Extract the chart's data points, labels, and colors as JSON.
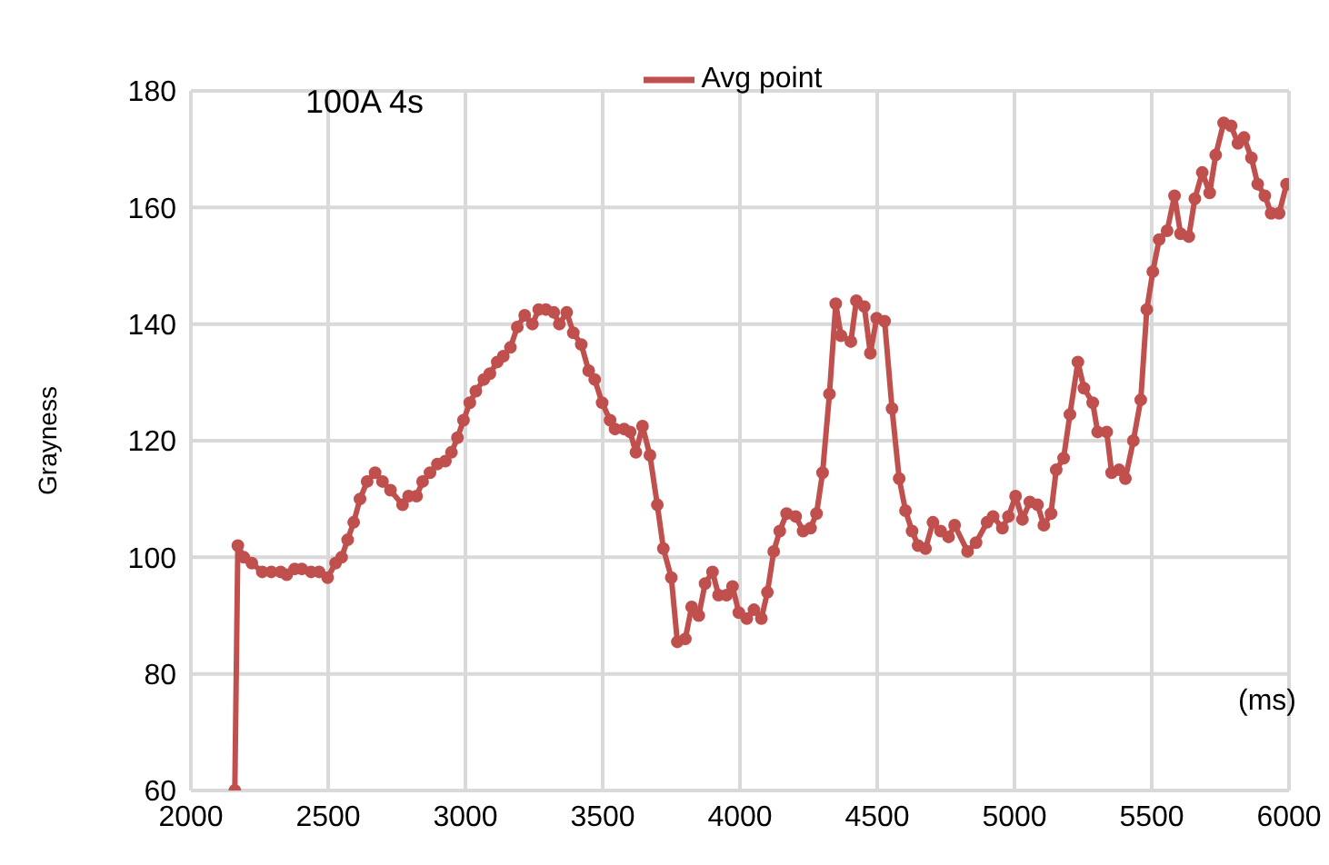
{
  "chart_data": {
    "type": "line",
    "xlabel": "(ms)",
    "ylabel": "Grayness",
    "annotations": [
      "100A 4s"
    ],
    "xlim": [
      2000,
      6000
    ],
    "xticks": [
      2000,
      2500,
      3000,
      3500,
      4000,
      4500,
      5000,
      5500,
      6000
    ],
    "ylim": [
      60,
      180
    ],
    "yticks": [
      60,
      80,
      100,
      120,
      140,
      160,
      180
    ],
    "grid": true,
    "legend": "top",
    "marker": "circle",
    "line_style": "solid",
    "series": [
      {
        "name": "Avg point",
        "color": "#c0504d",
        "x": [
          2160,
          2171,
          2193,
          2222,
          2260,
          2293,
          2327,
          2349,
          2378,
          2404,
          2438,
          2467,
          2498,
          2527,
          2549,
          2571,
          2593,
          2616,
          2642,
          2671,
          2698,
          2727,
          2771,
          2793,
          2822,
          2844,
          2871,
          2898,
          2927,
          2949,
          2971,
          2993,
          3016,
          3038,
          3067,
          3089,
          3116,
          3138,
          3164,
          3189,
          3216,
          3244,
          3267,
          3293,
          3322,
          3342,
          3369,
          3393,
          3422,
          3449,
          3471,
          3498,
          3527,
          3545,
          3578,
          3600,
          3621,
          3645,
          3672,
          3699,
          3721,
          3750,
          3772,
          3801,
          3824,
          3850,
          3873,
          3900,
          3922,
          3951,
          3973,
          3996,
          4025,
          4051,
          4078,
          4100,
          4123,
          4145,
          4170,
          4203,
          4230,
          4257,
          4279,
          4301,
          4326,
          4349,
          4368,
          4404,
          4424,
          4453,
          4475,
          4498,
          4527,
          4554,
          4580,
          4603,
          4627,
          4649,
          4676,
          4703,
          4731,
          4760,
          4782,
          4829,
          4860,
          4900,
          4922,
          4956,
          4978,
          5004,
          5029,
          5056,
          5084,
          5107,
          5133,
          5152,
          5179,
          5202,
          5231,
          5253,
          5285,
          5303,
          5336,
          5354,
          5381,
          5404,
          5433,
          5460,
          5482,
          5504,
          5527,
          5556,
          5583,
          5605,
          5635,
          5657,
          5684,
          5711,
          5733,
          5762,
          5789,
          5814,
          5836,
          5863,
          5886,
          5912,
          5935,
          5964,
          5991
        ],
        "values": [
          60,
          102,
          100,
          99,
          97.5,
          97.5,
          97.5,
          97,
          98,
          98,
          97.5,
          97.5,
          96.5,
          99,
          100,
          103,
          106,
          110,
          113,
          114.5,
          113,
          111.5,
          109,
          110.5,
          110.5,
          113,
          114.5,
          116,
          116.5,
          118,
          120.5,
          123.5,
          126.5,
          128.5,
          130.5,
          131.5,
          133.5,
          134.5,
          136,
          139.5,
          141.5,
          140,
          142.5,
          142.5,
          142,
          140,
          142,
          138.5,
          136.5,
          132,
          130.5,
          126.5,
          123.5,
          122,
          122,
          121.5,
          118,
          122.5,
          117.5,
          109,
          101.5,
          96.5,
          85.5,
          86,
          91.5,
          90,
          95.5,
          97.5,
          93.5,
          93.5,
          95,
          90.5,
          89.5,
          91,
          89.5,
          94,
          101,
          104.5,
          107.5,
          107,
          104.5,
          105,
          107.5,
          114.5,
          128,
          143.5,
          138,
          137,
          144,
          143,
          135,
          141,
          140.5,
          125.5,
          113.5,
          108,
          104.5,
          102,
          101.5,
          106,
          104.5,
          103.5,
          105.5,
          101,
          102.5,
          106,
          107,
          105,
          107,
          110.5,
          106.5,
          109.5,
          109,
          105.5,
          107.5,
          115,
          117,
          124.5,
          133.5,
          129,
          126.5,
          121.5,
          121.5,
          114.5,
          115,
          113.5,
          120,
          127,
          142.5,
          149,
          154.5,
          156,
          162,
          155.5,
          155,
          161.5,
          166,
          162.5,
          169,
          174.5,
          174,
          171,
          172,
          168.5,
          164,
          162,
          159,
          159,
          164
        ]
      }
    ]
  }
}
